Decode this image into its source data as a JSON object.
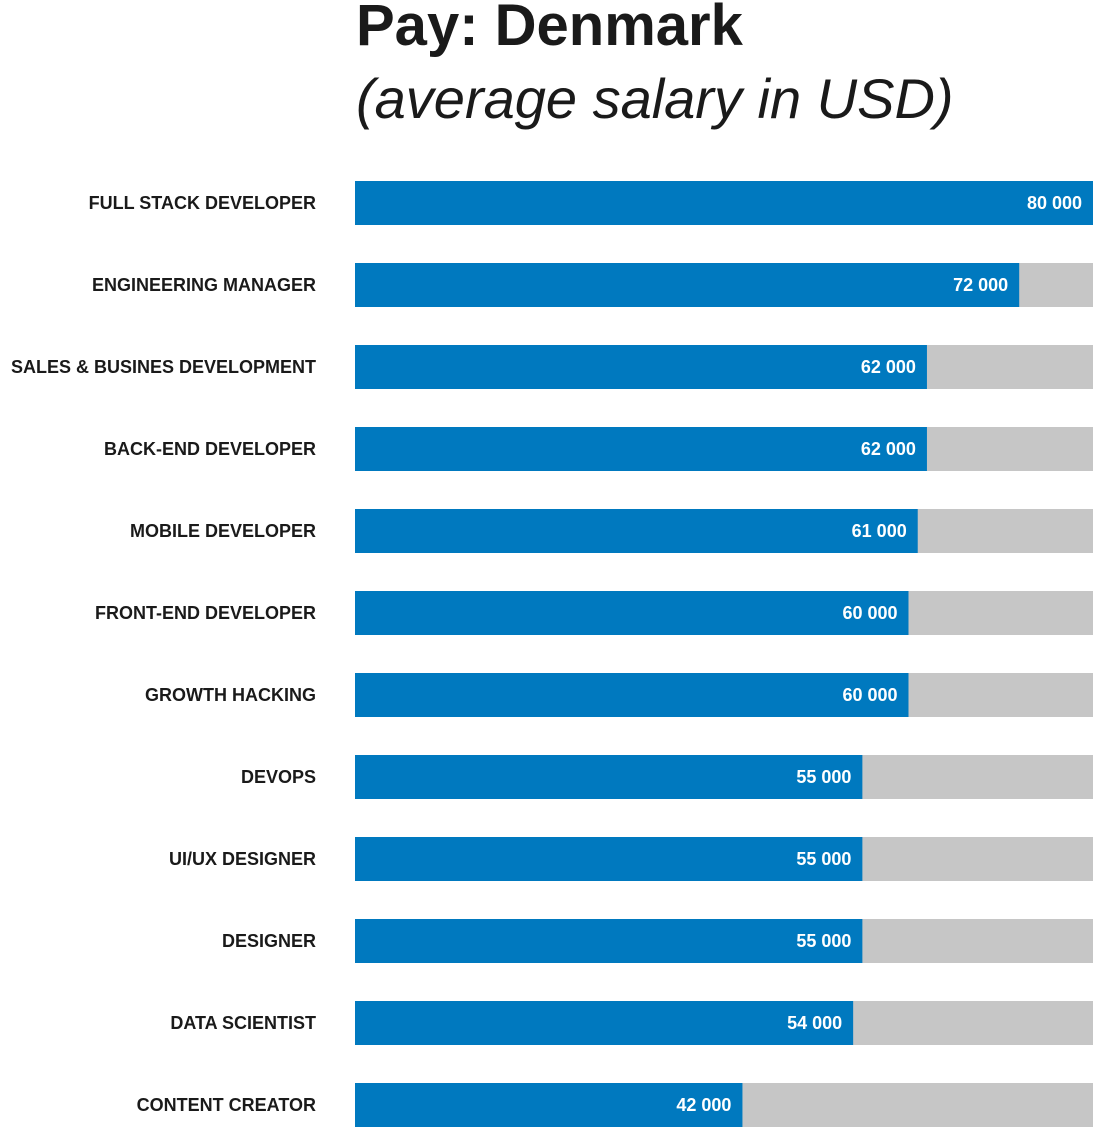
{
  "chart_data": {
    "type": "bar",
    "orientation": "horizontal",
    "title": "Pay: Denmark",
    "subtitle": "(average salary in USD)",
    "categories": [
      "FULL STACK DEVELOPER",
      "ENGINEERING MANAGER",
      "SALES & BUSINES DEVELOPMENT",
      "BACK-END DEVELOPER",
      "MOBILE DEVELOPER",
      "FRONT-END DEVELOPER",
      "GROWTH HACKING",
      "DEVOPS",
      "UI/UX DESIGNER",
      "DESIGNER",
      "DATA SCIENTIST",
      "CONTENT CREATOR"
    ],
    "values": [
      80000,
      72000,
      62000,
      62000,
      61000,
      60000,
      60000,
      55000,
      55000,
      55000,
      54000,
      42000
    ],
    "value_labels": [
      "80 000",
      "72 000",
      "62 000",
      "62 000",
      "61 000",
      "60 000",
      "60 000",
      "55 000",
      "55 000",
      "55 000",
      "54 000",
      "42 000"
    ],
    "xlim": [
      0,
      80000
    ],
    "xlabel": "",
    "ylabel": "",
    "grid": false,
    "legend": "none",
    "colors": {
      "bar": "#0079bf",
      "track": "#c6c6c6",
      "category_text": "#1a1a1a",
      "value_text": "#ffffff"
    }
  }
}
